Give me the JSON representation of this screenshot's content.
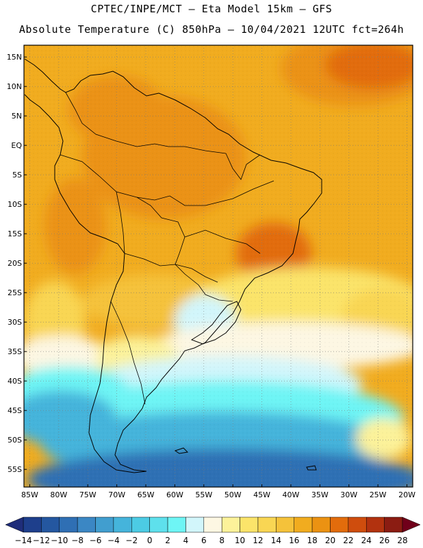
{
  "header": {
    "line1": "CPTEC/INPE/MCT –  Eta Model 15km – GFS",
    "line2": "Absolute Temperature (C) 850hPa – 10/04/2021 12UTC fct=264h"
  },
  "map": {
    "lon_range": [
      -86,
      -19
    ],
    "lat_range": [
      -58,
      17
    ],
    "lat_labels": [
      {
        "lat": 15,
        "text": "15N"
      },
      {
        "lat": 10,
        "text": "10N"
      },
      {
        "lat": 5,
        "text": "5N"
      },
      {
        "lat": 0,
        "text": "EQ"
      },
      {
        "lat": -5,
        "text": "5S"
      },
      {
        "lat": -10,
        "text": "10S"
      },
      {
        "lat": -15,
        "text": "15S"
      },
      {
        "lat": -20,
        "text": "20S"
      },
      {
        "lat": -25,
        "text": "25S"
      },
      {
        "lat": -30,
        "text": "30S"
      },
      {
        "lat": -35,
        "text": "35S"
      },
      {
        "lat": -40,
        "text": "40S"
      },
      {
        "lat": -45,
        "text": "45S"
      },
      {
        "lat": -50,
        "text": "50S"
      },
      {
        "lat": -55,
        "text": "55S"
      }
    ],
    "lon_labels": [
      {
        "lon": -85,
        "text": "85W"
      },
      {
        "lon": -80,
        "text": "80W"
      },
      {
        "lon": -75,
        "text": "75W"
      },
      {
        "lon": -70,
        "text": "70W"
      },
      {
        "lon": -65,
        "text": "65W"
      },
      {
        "lon": -60,
        "text": "60W"
      },
      {
        "lon": -55,
        "text": "55W"
      },
      {
        "lon": -50,
        "text": "50W"
      },
      {
        "lon": -45,
        "text": "45W"
      },
      {
        "lon": -40,
        "text": "40W"
      },
      {
        "lon": -35,
        "text": "35W"
      },
      {
        "lon": -30,
        "text": "30W"
      },
      {
        "lon": -25,
        "text": "25W"
      },
      {
        "lon": -20,
        "text": "20W"
      }
    ]
  },
  "colorbar": {
    "labels": [
      "-14",
      "-12",
      "-10",
      "-8",
      "-6",
      "-4",
      "-2",
      "0",
      "2",
      "4",
      "6",
      "8",
      "10",
      "12",
      "14",
      "16",
      "18",
      "20",
      "22",
      "24",
      "26",
      "28"
    ],
    "colors": [
      "#1e3f8c",
      "#2457a0",
      "#2f6fb4",
      "#3b87c4",
      "#419ecf",
      "#45b4db",
      "#4ccbe4",
      "#5ee0ec",
      "#6ef5f5",
      "#d2f6fb",
      "#fdf7e3",
      "#fcf29a",
      "#fbe46a",
      "#f9d653",
      "#f5c23a",
      "#f1ac1f",
      "#eb9212",
      "#e26c0c",
      "#cf4d0d",
      "#b2320f",
      "#8b1c12"
    ],
    "under_color": "#1f2d7a",
    "over_color": "#70001a"
  }
}
